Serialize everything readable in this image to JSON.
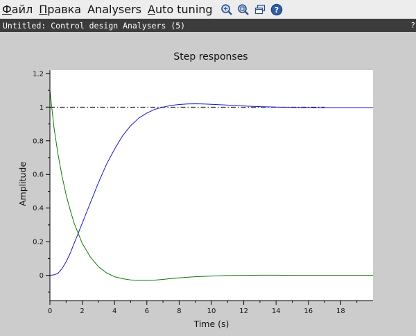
{
  "menubar": {
    "items": [
      {
        "mnemonic": "Ф",
        "rest": "айл"
      },
      {
        "mnemonic": "П",
        "rest": "равка"
      },
      {
        "mnemonic": "",
        "rest": "Analysers"
      },
      {
        "mnemonic": "A",
        "rest": "uto tuning"
      }
    ],
    "toolbar_icons": [
      "zoom-icon",
      "zoom-fit-icon",
      "windows-icon",
      "help-icon"
    ]
  },
  "window": {
    "title": "Untitled: Control design Analysers (5)",
    "help_glyph": "?"
  },
  "colors": {
    "series_blue": "#1414c8",
    "series_green": "#0a780a",
    "reference_line": "#000000",
    "figure_background": "#cccccc",
    "plot_background": "#ffffff"
  },
  "chart_data": {
    "type": "line",
    "title": "Step responses",
    "xlabel": "Time (s)",
    "ylabel": "Amplitude",
    "xlim": [
      0,
      20
    ],
    "ylim": [
      -0.15,
      1.22
    ],
    "x_ticks": [
      0,
      2,
      4,
      6,
      8,
      10,
      12,
      14,
      16,
      18
    ],
    "x_tick_labels": [
      "0",
      "2",
      "4",
      "6",
      "8",
      "10",
      "12",
      "14",
      "16",
      "18"
    ],
    "y_ticks": [
      0,
      0.2,
      0.4,
      0.6,
      0.8,
      1,
      1.2
    ],
    "y_tick_labels": [
      "0",
      "0.2",
      "0.4",
      "0.6",
      "0.8",
      "1",
      "1.2"
    ],
    "grid": false,
    "reference_line": {
      "y": 1,
      "x_range": [
        0,
        17
      ],
      "style": "dash-dot"
    },
    "series": [
      {
        "color": "#1414c8",
        "x": [
          0,
          0.25,
          0.5,
          0.75,
          1,
          1.25,
          1.5,
          1.75,
          2,
          2.5,
          3,
          3.5,
          4,
          4.5,
          5,
          5.5,
          6,
          6.5,
          7,
          7.5,
          8,
          8.5,
          9,
          9.5,
          10,
          11,
          12,
          13,
          14,
          15,
          16,
          17,
          18,
          19,
          20
        ],
        "y": [
          0,
          0.003,
          0.012,
          0.04,
          0.08,
          0.13,
          0.19,
          0.25,
          0.31,
          0.43,
          0.55,
          0.66,
          0.75,
          0.83,
          0.89,
          0.935,
          0.965,
          0.987,
          1.0,
          1.01,
          1.016,
          1.019,
          1.02,
          1.019,
          1.017,
          1.012,
          1.007,
          1.003,
          1.0,
          0.998,
          0.997,
          0.997,
          0.997,
          0.997,
          0.997
        ]
      },
      {
        "color": "#0a780a",
        "x": [
          0,
          0.25,
          0.5,
          0.75,
          1,
          1.25,
          1.5,
          1.75,
          2,
          2.5,
          3,
          3.5,
          4,
          4.5,
          5,
          5.5,
          6,
          6.5,
          7,
          7.5,
          8,
          8.5,
          9,
          9.5,
          10,
          11,
          12,
          13,
          14,
          15,
          16,
          17,
          18,
          19,
          20
        ],
        "y": [
          1.1,
          0.88,
          0.72,
          0.59,
          0.48,
          0.39,
          0.31,
          0.25,
          0.19,
          0.11,
          0.052,
          0.015,
          -0.008,
          -0.02,
          -0.027,
          -0.03,
          -0.03,
          -0.028,
          -0.024,
          -0.019,
          -0.015,
          -0.011,
          -0.008,
          -0.006,
          -0.004,
          -0.001,
          0.0,
          0.001,
          0.001,
          0.0,
          0.0,
          0.0,
          0.0,
          0.0,
          0.0
        ]
      }
    ]
  }
}
